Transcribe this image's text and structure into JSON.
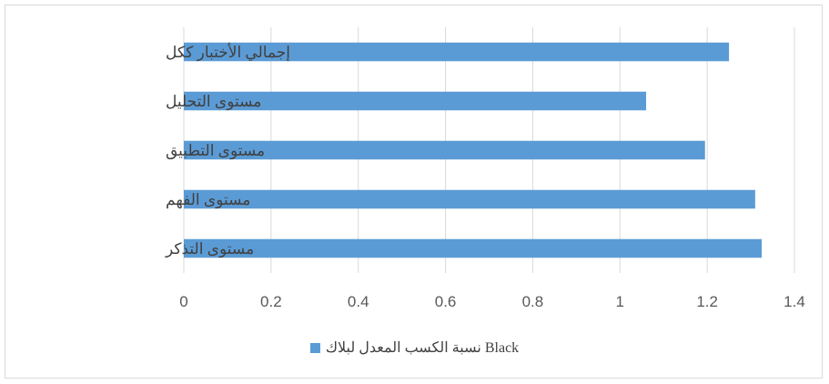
{
  "chart_data": {
    "type": "bar",
    "orientation": "horizontal",
    "categories": [
      "مستوى التذكر",
      "مستوى الفهم",
      "مستوى التطبيق",
      "مستوى التحليل",
      "إجمالي الأختبار ككل"
    ],
    "series": [
      {
        "name": "نسبة الكسب المعدل لبلاك Black",
        "values": [
          1.325,
          1.31,
          1.195,
          1.06,
          1.25
        ],
        "color": "#5b9bd5"
      }
    ],
    "xlim": [
      0,
      1.4
    ],
    "xticks": [
      "0",
      "0.2",
      "0.4",
      "0.6",
      "0.8",
      "1",
      "1.2",
      "1.4"
    ],
    "grid": true,
    "legend_position": "bottom",
    "title": "",
    "xlabel": "",
    "ylabel": ""
  }
}
